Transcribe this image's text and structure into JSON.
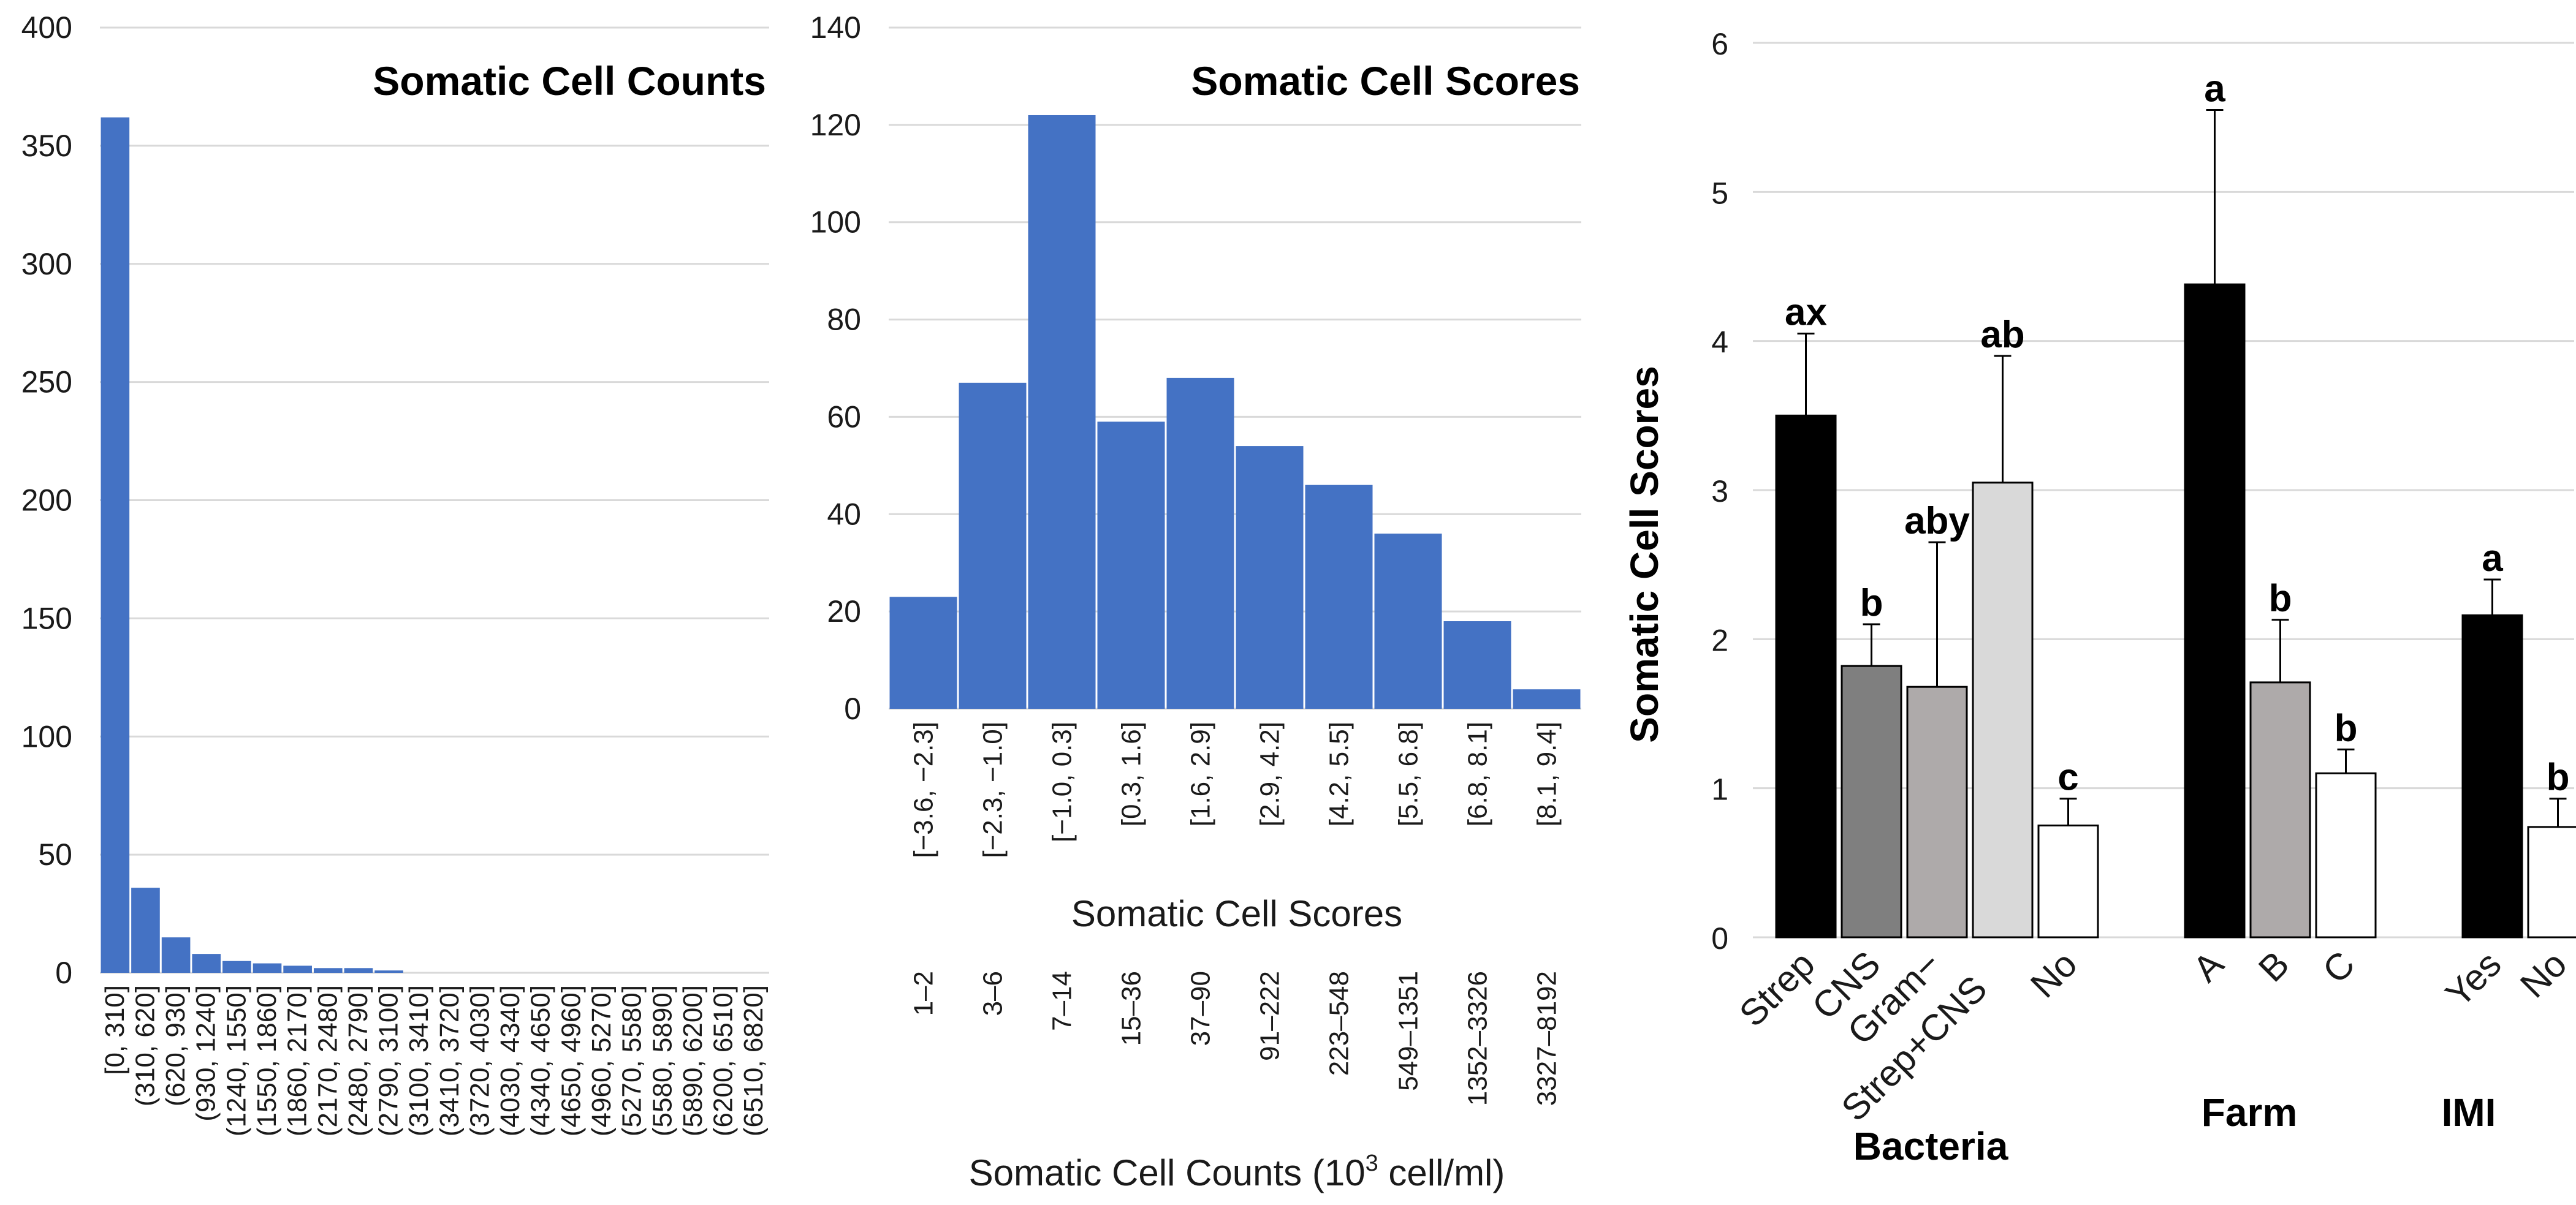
{
  "colors": {
    "bar_blue": "#4472C4",
    "grid": "#d9d9d9",
    "black": "#000000",
    "dark_gray": "#7f7f7f",
    "mid_gray": "#aeaaaa",
    "light_gray": "#d9d9d9",
    "white": "#ffffff"
  },
  "chart_data": [
    {
      "type": "bar",
      "title": "Somatic Cell Counts",
      "ylim": [
        0,
        400
      ],
      "yticks": [
        0,
        50,
        100,
        150,
        200,
        250,
        300,
        350,
        400
      ],
      "categories": [
        "[0, 310]",
        "(310, 620]",
        "(620, 930]",
        "(930, 1240]",
        "(1240, 1550]",
        "(1550, 1860]",
        "(1860, 2170]",
        "(2170, 2480]",
        "(2480, 2790]",
        "(2790, 3100]",
        "(3100, 3410]",
        "(3410, 3720]",
        "(3720, 4030]",
        "(4030, 4340]",
        "(4340, 4650]",
        "(4650, 4960]",
        "(4960, 5270]",
        "(5270, 5580]",
        "(5580, 5890]",
        "(5890, 6200]",
        "(6200, 6510]",
        "(6510, 6820]"
      ],
      "values": [
        362,
        36,
        15,
        8,
        5,
        4,
        3,
        2,
        2,
        1,
        0,
        0,
        0,
        0,
        0,
        0,
        0,
        0,
        0,
        0,
        0,
        0
      ],
      "grid": true
    },
    {
      "type": "bar",
      "title": "Somatic Cell Scores",
      "xlabel": "Somatic Cell Scores",
      "xlabel2": "Somatic Cell Counts (10",
      "xlabel2_sup": "3",
      "xlabel2_tail": " cell/ml)",
      "ylim": [
        0,
        140
      ],
      "yticks": [
        0,
        20,
        40,
        60,
        80,
        100,
        120,
        140
      ],
      "categories": [
        "[−3.6, −2.3]",
        "[−2.3, −1.0]",
        "[−1.0, 0.3]",
        "[0.3, 1.6]",
        "[1.6, 2.9]",
        "[2.9, 4.2]",
        "[4.2, 5.5]",
        "[5.5, 6.8]",
        "[6.8, 8.1]",
        "[8.1, 9.4]"
      ],
      "count_labels": [
        "1–2",
        "3–6",
        "7–14",
        "15–36",
        "37–90",
        "91–222",
        "223–548",
        "549–1351",
        "1352–3326",
        "3327–8192"
      ],
      "values": [
        23,
        67,
        122,
        59,
        68,
        54,
        46,
        36,
        18,
        4
      ],
      "grid": true
    },
    {
      "type": "bar",
      "ylabel": "Somatic Cell Scores",
      "ylim": [
        0,
        6
      ],
      "yticks": [
        0,
        1,
        2,
        3,
        4,
        5,
        6
      ],
      "grid": true,
      "groups": [
        {
          "name": "Bacteria",
          "bars": [
            {
              "label": "Strep",
              "value": 3.5,
              "error": 0.55,
              "letter": "ax",
              "color": "black"
            },
            {
              "label": "CNS",
              "value": 1.82,
              "error": 0.28,
              "letter": "b",
              "color": "dark_gray"
            },
            {
              "label": "Gram−",
              "value": 1.68,
              "error": 0.97,
              "letter": "aby",
              "color": "mid_gray"
            },
            {
              "label": "Strep+CNS",
              "value": 3.05,
              "error": 0.85,
              "letter": "ab",
              "color": "light_gray"
            },
            {
              "label": "No",
              "value": 0.75,
              "error": 0.18,
              "letter": "c",
              "color": "white"
            }
          ]
        },
        {
          "name": "Farm",
          "bars": [
            {
              "label": "A",
              "value": 4.38,
              "error": 1.17,
              "letter": "a",
              "color": "black"
            },
            {
              "label": "B",
              "value": 1.71,
              "error": 0.42,
              "letter": "b",
              "color": "mid_gray"
            },
            {
              "label": "C",
              "value": 1.1,
              "error": 0.16,
              "letter": "b",
              "color": "white"
            }
          ]
        },
        {
          "name": "IMI",
          "bars": [
            {
              "label": "Yes",
              "value": 2.16,
              "error": 0.24,
              "letter": "a",
              "color": "black"
            },
            {
              "label": "No",
              "value": 0.74,
              "error": 0.19,
              "letter": "b",
              "color": "white"
            }
          ]
        }
      ]
    }
  ]
}
